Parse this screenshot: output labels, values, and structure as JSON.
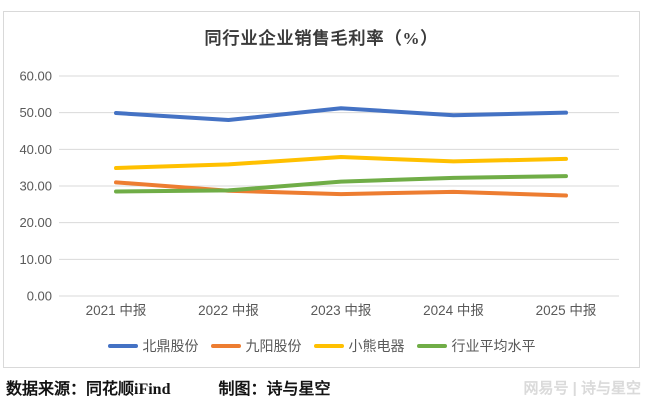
{
  "chart_data": {
    "type": "line",
    "title": "同行业企业销售毛利率（%）",
    "xlabel": "",
    "ylabel": "",
    "categories": [
      "2021 中报",
      "2022 中报",
      "2023 中报",
      "2024 中报",
      "2025 中报"
    ],
    "series": [
      {
        "name": "北鼎股份",
        "color": "#4472C4",
        "values": [
          49.9,
          48.0,
          51.2,
          49.3,
          50.0
        ]
      },
      {
        "name": "九阳股份",
        "color": "#ED7D31",
        "values": [
          31.0,
          28.7,
          27.8,
          28.4,
          27.4
        ]
      },
      {
        "name": "小熊电器",
        "color": "#FFC000",
        "values": [
          34.9,
          35.9,
          37.9,
          36.7,
          37.4
        ]
      },
      {
        "name": "行业平均水平",
        "color": "#70AD47",
        "values": [
          28.5,
          28.8,
          31.2,
          32.2,
          32.7
        ]
      }
    ],
    "ylim": [
      0,
      60
    ],
    "ytick_step": 10,
    "ytick_labels": [
      "0.00",
      "10.00",
      "20.00",
      "30.00",
      "40.00",
      "50.00",
      "60.00"
    ],
    "grid": true,
    "gridline_color": "#d9d9d9",
    "axis_label_color": "#595959",
    "legend_position": "bottom"
  },
  "footer": {
    "source_label": "数据来源：同花顺iFind",
    "credit_label": "制图：诗与星空",
    "watermark": "网易号 | 诗与星空"
  }
}
